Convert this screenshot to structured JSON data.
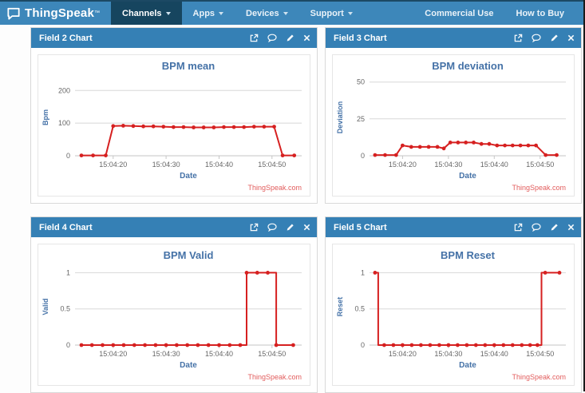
{
  "navbar": {
    "brand": "ThingSpeak",
    "brand_tm": "™",
    "items": [
      {
        "label": "Channels",
        "active": true
      },
      {
        "label": "Apps",
        "active": false
      },
      {
        "label": "Devices",
        "active": false
      },
      {
        "label": "Support",
        "active": false
      }
    ],
    "right_items": [
      {
        "label": "Commercial Use"
      },
      {
        "label": "How to Buy"
      }
    ]
  },
  "panels": [
    {
      "header": "Field 2 Chart"
    },
    {
      "header": "Field 3 Chart"
    },
    {
      "header": "Field 4 Chart"
    },
    {
      "header": "Field 5 Chart"
    }
  ],
  "colors": {
    "line": "#d62020",
    "title": "#4572a7",
    "tick": "#666666",
    "grid": "#d8d8d8",
    "axis": "#c6c6c6",
    "watermark": "#e25d5d"
  },
  "chart_data": [
    {
      "type": "line",
      "title": "BPM mean",
      "xlabel": "Date",
      "ylabel": "Bpm",
      "watermark": "ThingSpeak.com",
      "ylim": [
        0,
        235
      ],
      "yticks": [
        0,
        100,
        200
      ],
      "xlim": [
        12.8,
        55.6
      ],
      "xticks": [
        {
          "t": 20,
          "label": "15:04:20"
        },
        {
          "t": 30,
          "label": "15:04:30"
        },
        {
          "t": 40,
          "label": "15:04:40"
        },
        {
          "t": 50,
          "label": "15:04:50"
        }
      ],
      "points": [
        [
          14,
          1
        ],
        [
          16.2,
          1
        ],
        [
          18.6,
          1
        ],
        [
          20,
          91
        ],
        [
          21.9,
          92
        ],
        [
          23.8,
          91
        ],
        [
          25.7,
          90
        ],
        [
          27.6,
          90
        ],
        [
          29.5,
          89
        ],
        [
          31.4,
          88
        ],
        [
          33.3,
          88
        ],
        [
          35.2,
          87
        ],
        [
          37.1,
          87
        ],
        [
          39,
          87
        ],
        [
          40.9,
          88
        ],
        [
          42.8,
          88
        ],
        [
          44.7,
          88
        ],
        [
          46.6,
          89
        ],
        [
          48.5,
          89
        ],
        [
          50.4,
          89
        ],
        [
          52,
          1
        ],
        [
          54.2,
          1
        ]
      ]
    },
    {
      "type": "line",
      "title": "BPM deviation",
      "xlabel": "Date",
      "ylabel": "Deviation",
      "watermark": "ThingSpeak.com",
      "ylim": [
        0,
        52
      ],
      "yticks": [
        0,
        25,
        50
      ],
      "xlim": [
        12.8,
        55.6
      ],
      "xticks": [
        {
          "t": 20,
          "label": "15:04:20"
        },
        {
          "t": 30,
          "label": "15:04:30"
        },
        {
          "t": 40,
          "label": "15:04:40"
        },
        {
          "t": 50,
          "label": "15:04:50"
        }
      ],
      "points": [
        [
          14,
          0.5
        ],
        [
          16.2,
          0.5
        ],
        [
          18.6,
          0.5
        ],
        [
          20,
          7
        ],
        [
          21.9,
          6
        ],
        [
          23.8,
          6
        ],
        [
          25.7,
          6
        ],
        [
          27.6,
          6
        ],
        [
          29,
          5
        ],
        [
          30.4,
          9
        ],
        [
          32.1,
          9
        ],
        [
          33.8,
          9
        ],
        [
          35.5,
          9
        ],
        [
          37.2,
          8
        ],
        [
          38.9,
          8
        ],
        [
          40.6,
          7
        ],
        [
          42.3,
          7
        ],
        [
          44,
          7
        ],
        [
          45.7,
          7
        ],
        [
          47.4,
          7
        ],
        [
          49.1,
          7
        ],
        [
          51.2,
          0.5
        ],
        [
          53.6,
          0.5
        ]
      ]
    },
    {
      "type": "line",
      "title": "BPM Valid",
      "xlabel": "Date",
      "ylabel": "Valid",
      "watermark": "ThingSpeak.com",
      "ylim": [
        0,
        1.06
      ],
      "yticks": [
        0,
        0.5,
        1
      ],
      "xlim": [
        12.8,
        55.6
      ],
      "xticks": [
        {
          "t": 20,
          "label": "15:04:20"
        },
        {
          "t": 30,
          "label": "15:04:30"
        },
        {
          "t": 40,
          "label": "15:04:40"
        },
        {
          "t": 50,
          "label": "15:04:50"
        }
      ],
      "points": [
        [
          14,
          0
        ],
        [
          16,
          0
        ],
        [
          18,
          0
        ],
        [
          20,
          0
        ],
        [
          22,
          0
        ],
        [
          24,
          0
        ],
        [
          26,
          0
        ],
        [
          28,
          0
        ],
        [
          30,
          0
        ],
        [
          32,
          0
        ],
        [
          34,
          0
        ],
        [
          36,
          0
        ],
        [
          38,
          0
        ],
        [
          40,
          0
        ],
        [
          42,
          0
        ],
        [
          44,
          0
        ],
        [
          45.2,
          0,
          0
        ],
        [
          45.2,
          1
        ],
        [
          47.2,
          1
        ],
        [
          49.2,
          1
        ],
        [
          50.8,
          1,
          0
        ],
        [
          50.8,
          0
        ],
        [
          54,
          0
        ]
      ]
    },
    {
      "type": "line",
      "title": "BPM Reset",
      "xlabel": "Date",
      "ylabel": "Reset",
      "watermark": "ThingSpeak.com",
      "ylim": [
        0,
        1.06
      ],
      "yticks": [
        0,
        0.5,
        1
      ],
      "xlim": [
        12.8,
        55.6
      ],
      "xticks": [
        {
          "t": 20,
          "label": "15:04:20"
        },
        {
          "t": 30,
          "label": "15:04:30"
        },
        {
          "t": 40,
          "label": "15:04:40"
        },
        {
          "t": 50,
          "label": "15:04:50"
        }
      ],
      "points": [
        [
          14,
          1
        ],
        [
          14.7,
          1,
          0
        ],
        [
          14.7,
          0,
          0
        ],
        [
          16,
          0
        ],
        [
          18,
          0
        ],
        [
          20,
          0
        ],
        [
          22,
          0
        ],
        [
          24,
          0
        ],
        [
          26,
          0
        ],
        [
          28,
          0
        ],
        [
          30,
          0
        ],
        [
          32,
          0
        ],
        [
          34,
          0
        ],
        [
          36,
          0
        ],
        [
          38,
          0
        ],
        [
          40,
          0
        ],
        [
          42,
          0
        ],
        [
          44,
          0
        ],
        [
          46,
          0
        ],
        [
          47.8,
          0
        ],
        [
          49.4,
          0
        ],
        [
          50.3,
          0,
          0
        ],
        [
          50.3,
          1,
          0
        ],
        [
          51.1,
          1
        ],
        [
          54.2,
          1
        ]
      ]
    }
  ]
}
